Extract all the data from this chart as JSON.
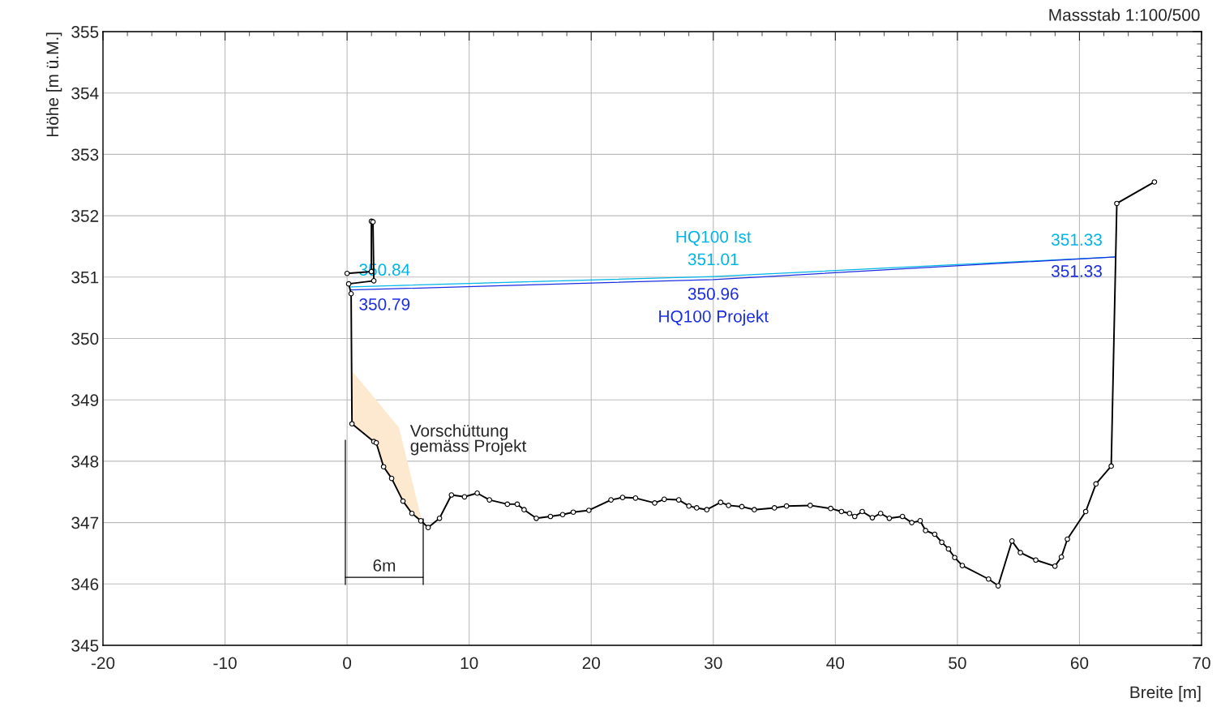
{
  "chart_data": {
    "type": "line",
    "xlabel": "Breite [m]",
    "ylabel": "Höhe [m ü.M.]",
    "annotations": [
      "Massstab 1:100/500",
      "Vorschüttung\ngemäss Projekt",
      "6m"
    ],
    "xlim": [
      -20,
      70
    ],
    "ylim": [
      345,
      355
    ],
    "xticks": [
      -20,
      -10,
      0,
      10,
      20,
      30,
      40,
      50,
      60,
      70
    ],
    "yticks": [
      345,
      346,
      347,
      348,
      349,
      350,
      351,
      352,
      353,
      354,
      355
    ],
    "grid": true,
    "series": [
      {
        "type": "area",
        "color": "#fde9cf",
        "x": [
          0.4,
          4.25,
          6.1,
          5.31,
          4.58,
          3.65,
          2.99,
          2.39,
          2.19,
          0.4
        ],
        "values": [
          349.47,
          348.55,
          347.05,
          347.15,
          347.35,
          347.72,
          347.91,
          348.3,
          348.32,
          348.61
        ]
      },
      {
        "color": "#00b4e6",
        "name": "HQ100 Ist",
        "x": [
          0.3,
          30,
          63.0
        ],
        "values": [
          350.84,
          351.01,
          351.33
        ],
        "value_labels": [
          "350.84",
          "351.01",
          "351.33"
        ]
      },
      {
        "color": "#1a2ee0",
        "name": "HQ100 Projekt",
        "x": [
          0.3,
          30,
          63.0
        ],
        "values": [
          350.79,
          350.96,
          351.33
        ],
        "value_labels": [
          "350.79",
          "350.96",
          "351.33"
        ]
      },
      {
        "color": "#000000",
        "marker": "circle",
        "x": [
          0,
          1.99,
          1.99,
          2.12,
          2.19,
          0.13,
          0.33,
          0.4,
          2.19,
          2.39,
          2.99,
          3.65,
          4.58,
          5.31,
          6.04,
          6.64,
          7.57,
          8.55,
          9.62,
          10.66,
          11.66,
          13.13,
          13.94,
          14.5,
          15.5,
          16.66,
          17.66,
          18.53,
          19.81,
          21.62,
          22.57,
          23.63,
          25.2,
          25.98,
          27.17,
          28.0,
          28.64,
          29.47,
          30.6,
          31.25,
          32.34,
          33.36,
          35.01,
          36.0,
          37.94,
          39.62,
          40.5,
          41.16,
          41.59,
          42.2,
          43.03,
          43.71,
          44.42,
          45.5,
          46.26,
          46.95,
          47.39,
          48.14,
          48.72,
          49.27,
          49.78,
          50.4,
          52.55,
          53.34,
          54.47,
          55.16,
          56.42,
          57.99,
          58.52,
          59.01,
          60.51,
          61.35,
          62.6,
          63.06,
          66.14
        ],
        "values": [
          351.06,
          351.09,
          351.91,
          351.9,
          350.94,
          350.89,
          350.73,
          348.61,
          348.32,
          348.3,
          347.91,
          347.72,
          347.35,
          347.15,
          347.03,
          346.92,
          347.07,
          347.45,
          347.42,
          347.48,
          347.37,
          347.3,
          347.3,
          347.21,
          347.07,
          347.1,
          347.13,
          347.17,
          347.2,
          347.37,
          347.41,
          347.4,
          347.32,
          347.38,
          347.37,
          347.27,
          347.24,
          347.21,
          347.33,
          347.28,
          347.26,
          347.21,
          347.24,
          347.27,
          347.28,
          347.23,
          347.18,
          347.15,
          347.1,
          347.18,
          347.08,
          347.15,
          347.07,
          347.1,
          347.0,
          347.03,
          346.87,
          346.81,
          346.68,
          346.57,
          346.43,
          346.3,
          346.08,
          345.97,
          346.7,
          346.51,
          346.39,
          346.29,
          346.44,
          346.73,
          347.18,
          347.63,
          347.92,
          352.2,
          352.55
        ]
      }
    ]
  }
}
